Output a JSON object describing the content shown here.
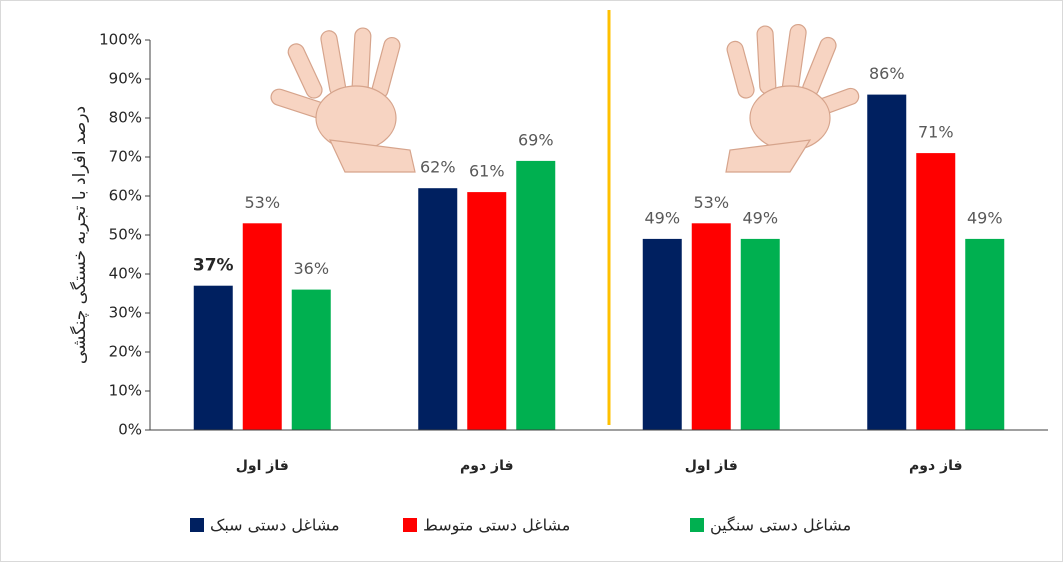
{
  "chart_data": {
    "type": "bar",
    "y_label": "درصد افراد با تجربه خستگی چنگشی",
    "categories": [
      "فاز اول",
      "فاز دوم",
      "فاز اول",
      "فاز دوم"
    ],
    "series": [
      {
        "name": "مشاغل دستی سبک",
        "color": "#002060",
        "values": [
          37,
          62,
          49,
          86
        ],
        "value_labels": [
          "37%",
          "62%",
          "49%",
          "86%"
        ]
      },
      {
        "name": "مشاغل دستی متوسط",
        "color": "#ff0000",
        "values": [
          53,
          61,
          53,
          71
        ],
        "value_labels": [
          "53%",
          "61%",
          "53%",
          "71%"
        ]
      },
      {
        "name": "مشاغل دستی سنگین",
        "color": "#00b050",
        "values": [
          36,
          69,
          49,
          49
        ],
        "value_labels": [
          "36%",
          "69%",
          "49%",
          "49%"
        ]
      }
    ],
    "ylim": [
      0,
      100
    ],
    "yticks": [
      {
        "value": 0,
        "label": "0%"
      },
      {
        "value": 10,
        "label": "10%"
      },
      {
        "value": 20,
        "label": "20%"
      },
      {
        "value": 30,
        "label": "30%"
      },
      {
        "value": 40,
        "label": "40%"
      },
      {
        "value": 50,
        "label": "50%"
      },
      {
        "value": 60,
        "label": "60%"
      },
      {
        "value": 70,
        "label": "70%"
      },
      {
        "value": 80,
        "label": "80%"
      },
      {
        "value": 90,
        "label": "90%"
      },
      {
        "value": 100,
        "label": "100%"
      }
    ],
    "grid": false,
    "legend": "bottom"
  }
}
